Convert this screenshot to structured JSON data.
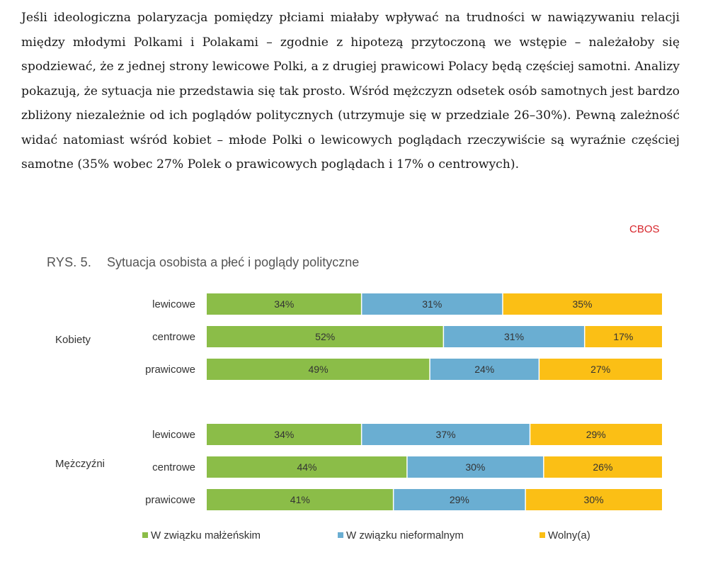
{
  "text": {
    "paragraph": "Jeśli ideologiczna polaryzacja pomiędzy płciami miałaby wpływać na trudności w nawiązywaniu relacji między młodymi Polkami i Polakami – zgodnie z hipotezą przytoczoną we wstępie – należałoby się spodziewać, że z jednej strony lewicowe Polki, a z drugiej prawicowi Polacy będą częściej samotni. Analizy pokazują, że sytuacja nie przedstawia się tak prosto. Wśród mężczyzn odsetek osób samotnych jest bardzo zbliżony niezależnie od ich poglądów politycznych (utrzymuje się w przedziale 26–30%). Pewną zależność widać natomiast wśród kobiet – młode Polki o lewicowych poglądach rzeczywiście są wyraźnie częściej samotne (35% wobec 27% Polek o prawicowych poglądach i 17% o centrowych)."
  },
  "figure": {
    "source": "CBOS",
    "number": "RYS. 5.",
    "title": "Sytuacja osobista a płeć i poglądy polityczne"
  },
  "colors": {
    "married": "#8bbd48",
    "informal": "#6aaed2",
    "single": "#fbbf15"
  },
  "chart_data": {
    "type": "bar",
    "orientation": "horizontal",
    "stacked": true,
    "percent_stacked": true,
    "title": "Sytuacja osobista a płeć i poglądy polityczne",
    "xlim": [
      0,
      100
    ],
    "grid": false,
    "legend_position": "bottom",
    "groups": [
      {
        "name": "Kobiety",
        "categories": [
          "lewicowe",
          "centrowe",
          "prawicowe"
        ]
      },
      {
        "name": "Mężczyźni",
        "categories": [
          "lewicowe",
          "centrowe",
          "prawicowe"
        ]
      }
    ],
    "series": [
      {
        "name": "W związku małżeńskim",
        "color": "#8bbd48",
        "values": [
          34,
          52,
          49,
          34,
          44,
          41
        ],
        "labels": [
          "34%",
          "52%",
          "49%",
          "34%",
          "44%",
          "41%"
        ]
      },
      {
        "name": "W związku nieformalnym",
        "color": "#6aaed2",
        "values": [
          31,
          31,
          24,
          37,
          30,
          29
        ],
        "labels": [
          "31%",
          "31%",
          "24%",
          "37%",
          "30%",
          "29%"
        ]
      },
      {
        "name": "Wolny(a)",
        "color": "#fbbf15",
        "values": [
          35,
          17,
          27,
          29,
          26,
          30
        ],
        "labels": [
          "35%",
          "17%",
          "27%",
          "29%",
          "26%",
          "30%"
        ]
      }
    ]
  }
}
